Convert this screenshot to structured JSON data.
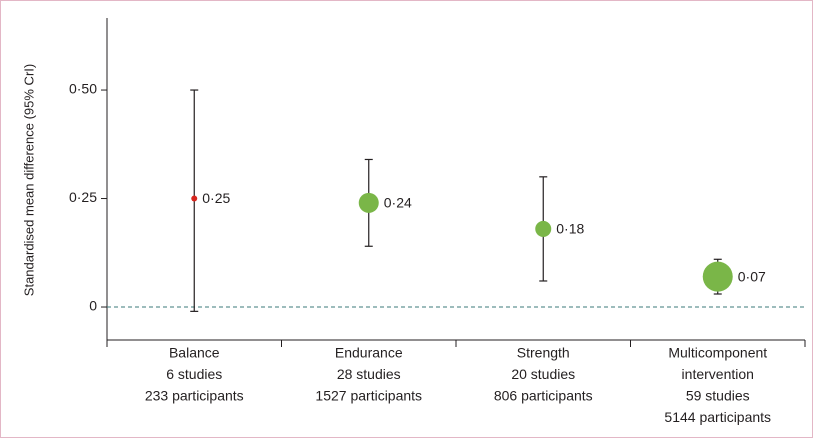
{
  "chart_data": {
    "type": "errorbar",
    "y_label": "Standardised mean difference (95% CrI)",
    "categories": [
      [
        "Balance",
        "6 studies",
        "233 participants"
      ],
      [
        "Endurance",
        "28 studies",
        "1527 participants"
      ],
      [
        "Strength",
        "20 studies",
        "806 participants"
      ],
      [
        "Multicomponent",
        "intervention",
        "59 studies",
        "5144 participants"
      ]
    ],
    "values": [
      0.25,
      0.24,
      0.18,
      0.07
    ],
    "value_labels": [
      "0·25",
      "0·24",
      "0·18",
      "0·07"
    ],
    "lower": [
      -0.01,
      0.14,
      0.06,
      0.03
    ],
    "upper": [
      0.5,
      0.34,
      0.3,
      0.11
    ],
    "sizes": [
      3,
      10,
      8,
      15
    ],
    "colors": [
      "#d7261e",
      "#7ab648",
      "#7ab648",
      "#7ab648"
    ],
    "ylim": [
      -0.076,
      0.666
    ],
    "yticks": [
      {
        "value": 0,
        "label": "0"
      },
      {
        "value": 0.25,
        "label": "0·25"
      },
      {
        "value": 0.5,
        "label": "0·50"
      }
    ],
    "reference_line": 0
  }
}
